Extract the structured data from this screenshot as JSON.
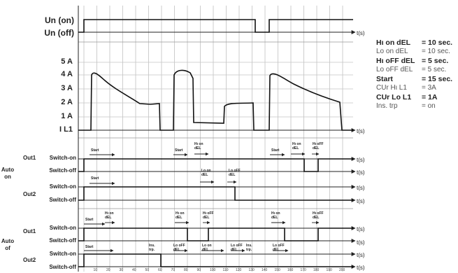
{
  "time_unit": "t(s)",
  "un_labels": [
    "Un (on)",
    "Un (off)"
  ],
  "current_labels": [
    "5 A",
    "4 A",
    "3 A",
    "2 A",
    "1 A",
    "I L1"
  ],
  "auto_labels": [
    {
      "line1": "Auto",
      "line2": "on"
    },
    {
      "line1": "Auto",
      "line2": "of"
    }
  ],
  "out_labels": [
    "Out1",
    "Out2"
  ],
  "switch_labels": [
    "Switch-on",
    "Switch-off"
  ],
  "params": [
    {
      "name": "Hι on dEL",
      "value": "= 10 sec.",
      "emphasis": true
    },
    {
      "name": "Lo on dEL",
      "value": "= 10 sec.",
      "emphasis": false
    },
    {
      "name": "Hι oFF dEL",
      "value": "= 5 sec.",
      "emphasis": true
    },
    {
      "name": "Lo oFF dEL",
      "value": "= 5 sec.",
      "emphasis": false
    },
    {
      "name": "Start",
      "value": "= 15 sec.",
      "emphasis": true
    },
    {
      "name": "CUr Hι L1",
      "value": "= 3A",
      "emphasis": false
    },
    {
      "name": "CUr Lo L1",
      "value": "= 1A",
      "emphasis": true
    },
    {
      "name": "Ins. trp",
      "value": "= on",
      "emphasis": false
    }
  ],
  "annotations": [
    {
      "id": "start-a1",
      "lines": [
        "Start"
      ]
    },
    {
      "id": "hi-on-a1",
      "lines": [
        "Hι on",
        "dEL"
      ]
    },
    {
      "id": "start-a1b",
      "lines": [
        "Start"
      ]
    },
    {
      "id": "hi-on-a1b",
      "lines": [
        "Hι on",
        "dEL"
      ]
    },
    {
      "id": "hi-off-a1b",
      "lines": [
        "Hι oFF",
        "dEL"
      ]
    },
    {
      "id": "start-a2",
      "lines": [
        "Start"
      ]
    },
    {
      "id": "lo-on-a2",
      "lines": [
        "Lo on",
        "dEL"
      ]
    },
    {
      "id": "lo-off-a2",
      "lines": [
        "Lo oFF",
        "dEL"
      ]
    },
    {
      "id": "start-b1",
      "lines": [
        "Start"
      ]
    },
    {
      "id": "hi-on-b1",
      "lines": [
        "Hι on",
        "dEL"
      ]
    },
    {
      "id": "hi-off-b1",
      "lines": [
        "Hι oFF",
        "dEL"
      ]
    },
    {
      "id": "hi-on-b1b",
      "lines": [
        "Hι on",
        "dEL"
      ]
    },
    {
      "id": "hi-off-b1b",
      "lines": [
        "Hι oFF",
        "dEL"
      ]
    },
    {
      "id": "start-b2",
      "lines": [
        "Start"
      ]
    },
    {
      "id": "ins-b2",
      "lines": [
        "Ins.",
        "trp."
      ]
    },
    {
      "id": "lo-off-b2",
      "lines": [
        "Lo oFF",
        "dEL"
      ]
    },
    {
      "id": "lo-on-b2",
      "lines": [
        "Lo on",
        "dEL"
      ]
    },
    {
      "id": "lo-off-b2b",
      "lines": [
        "Lo oFF",
        "dEL"
      ]
    },
    {
      "id": "ins-b2b",
      "lines": [
        "Ins.",
        "trp."
      ]
    },
    {
      "id": "lo-off-b2c",
      "lines": [
        "Lo oFF",
        "dEL"
      ]
    }
  ],
  "x_ticks": [
    "10",
    "20",
    "30",
    "40",
    "50",
    "60",
    "70",
    "80",
    "90",
    "100",
    "110",
    "120",
    "130",
    "140",
    "150",
    "160",
    "170",
    "180",
    "190",
    "200"
  ]
}
